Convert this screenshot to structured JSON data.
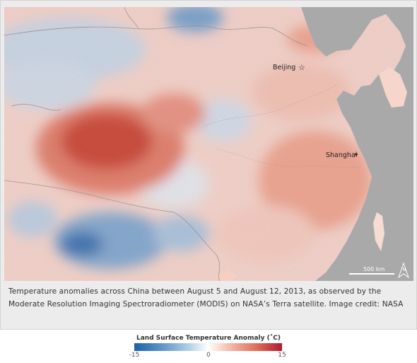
{
  "map": {
    "labels": {
      "beijing": "Beijing",
      "shanghai": "Shanghai"
    },
    "scale_bar": "500 km",
    "north_arrow": "N",
    "colors": {
      "ocean": "#a9a9a9",
      "hot": "#b3182c",
      "warm": "#f2a994",
      "cool": "#9cc2e0",
      "cold": "#1d5fa8"
    }
  },
  "caption": "Temperature anomalies across China between August 5 and August 12, 2013, as observed by the Moderate Resolution Imaging Spectroradiometer (MODIS) on NASA’s Terra satellite. Image credit: NASA",
  "legend": {
    "title": "Land Surface Temperature Anomaly (˚C)",
    "ticks": [
      "-15",
      "0",
      "15"
    ],
    "range": [
      -15,
      15
    ]
  }
}
